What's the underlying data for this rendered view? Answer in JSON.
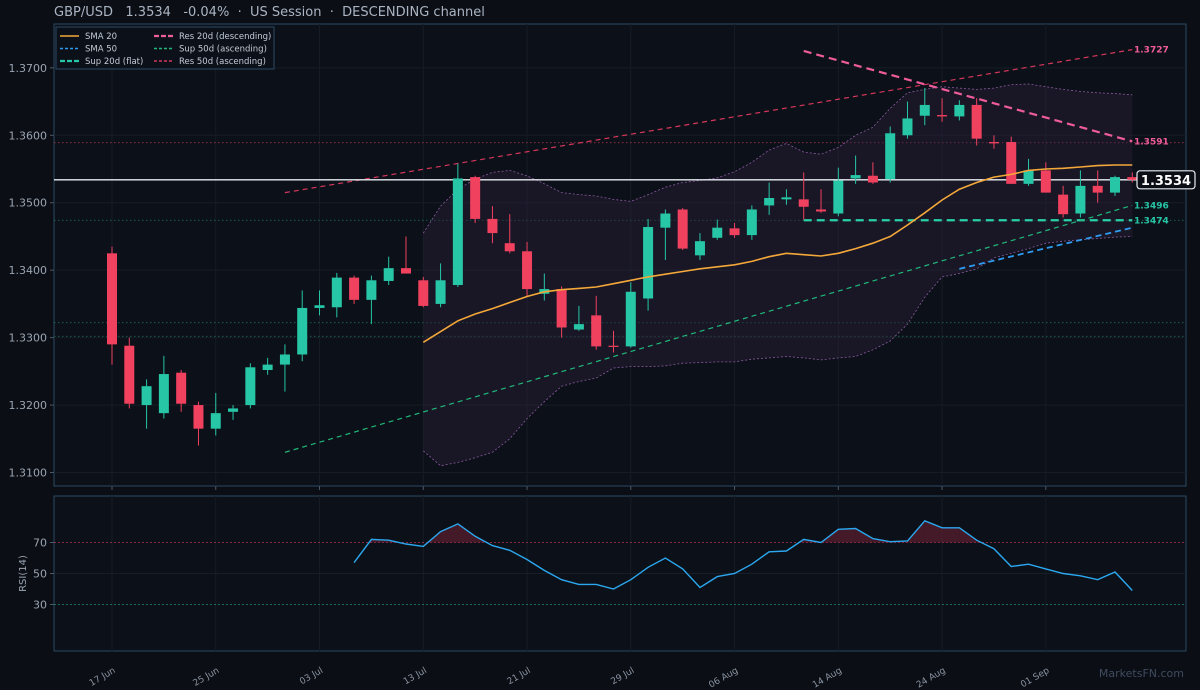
{
  "header": {
    "symbol": "GBP/USD",
    "price": "1.3534",
    "change": "-0.04%",
    "session": "US Session",
    "channel": "DESCENDING channel",
    "separator": "·"
  },
  "watermark": "MarketsFN.com",
  "colors": {
    "bg": "#0b0e14",
    "up": "#26c6a6",
    "down": "#f0415f",
    "sma20": "#f5a83a",
    "sma50": "#2f9bf0",
    "res20": "#ee5c9a",
    "sup50": "#20b87a",
    "res50": "#d6375c",
    "band": "#8a5aa0",
    "rsi": "#2ba8f0",
    "axis": "#2a4a63"
  },
  "chart_data": [
    {
      "type": "candlestick",
      "title": "",
      "ylim": [
        1.308,
        1.3765
      ],
      "yticks": [
        "1.3100",
        "1.3200",
        "1.3300",
        "1.3400",
        "1.3500",
        "1.3600",
        "1.3700"
      ],
      "xticks": [
        {
          "label": "17 Jun",
          "i": 0
        },
        {
          "label": "25 Jun",
          "i": 6
        },
        {
          "label": "03 Jul",
          "i": 12
        },
        {
          "label": "13 Jul",
          "i": 18
        },
        {
          "label": "21 Jul",
          "i": 24
        },
        {
          "label": "29 Jul",
          "i": 30
        },
        {
          "label": "06 Aug",
          "i": 36
        },
        {
          "label": "14 Aug",
          "i": 42
        },
        {
          "label": "24 Aug",
          "i": 48
        },
        {
          "label": "01 Sep",
          "i": 54
        }
      ],
      "candles": [
        [
          1.3425,
          1.3435,
          1.326,
          1.329
        ],
        [
          1.3288,
          1.33,
          1.3195,
          1.3202
        ],
        [
          1.32,
          1.3238,
          1.3165,
          1.3228
        ],
        [
          1.3188,
          1.3273,
          1.318,
          1.3246
        ],
        [
          1.3248,
          1.3252,
          1.319,
          1.3202
        ],
        [
          1.32,
          1.3205,
          1.314,
          1.3165
        ],
        [
          1.3165,
          1.3218,
          1.3155,
          1.3188
        ],
        [
          1.319,
          1.32,
          1.3178,
          1.3195
        ],
        [
          1.32,
          1.3262,
          1.3195,
          1.3256
        ],
        [
          1.3252,
          1.327,
          1.3245,
          1.326
        ],
        [
          1.326,
          1.329,
          1.322,
          1.3275
        ],
        [
          1.3275,
          1.337,
          1.3265,
          1.3344
        ],
        [
          1.3344,
          1.337,
          1.3333,
          1.3348
        ],
        [
          1.3345,
          1.3396,
          1.333,
          1.3389
        ],
        [
          1.3389,
          1.3392,
          1.335,
          1.3356
        ],
        [
          1.3356,
          1.3392,
          1.332,
          1.3385
        ],
        [
          1.3384,
          1.342,
          1.3378,
          1.3403
        ],
        [
          1.3403,
          1.345,
          1.3395,
          1.3395
        ],
        [
          1.3385,
          1.339,
          1.3345,
          1.3347
        ],
        [
          1.335,
          1.341,
          1.3345,
          1.3385
        ],
        [
          1.3378,
          1.3558,
          1.3375,
          1.3536
        ],
        [
          1.3538,
          1.354,
          1.347,
          1.3476
        ],
        [
          1.3476,
          1.3495,
          1.344,
          1.3455
        ],
        [
          1.344,
          1.3483,
          1.3425,
          1.3428
        ],
        [
          1.3428,
          1.3442,
          1.336,
          1.3372
        ],
        [
          1.3365,
          1.3395,
          1.3355,
          1.3372
        ],
        [
          1.3372,
          1.3376,
          1.33,
          1.3315
        ],
        [
          1.3312,
          1.3347,
          1.331,
          1.332
        ],
        [
          1.3333,
          1.3362,
          1.3282,
          1.3287
        ],
        [
          1.3288,
          1.331,
          1.3278,
          1.3287
        ],
        [
          1.3287,
          1.3382,
          1.3285,
          1.3368
        ],
        [
          1.3358,
          1.3476,
          1.334,
          1.3464
        ],
        [
          1.3463,
          1.349,
          1.3415,
          1.3484
        ],
        [
          1.349,
          1.3492,
          1.343,
          1.3432
        ],
        [
          1.3422,
          1.3455,
          1.3415,
          1.3443
        ],
        [
          1.3448,
          1.3475,
          1.3445,
          1.3463
        ],
        [
          1.3462,
          1.347,
          1.3448,
          1.3452
        ],
        [
          1.3452,
          1.3496,
          1.3445,
          1.349
        ],
        [
          1.3496,
          1.353,
          1.3482,
          1.3507
        ],
        [
          1.3505,
          1.352,
          1.3497,
          1.3508
        ],
        [
          1.3505,
          1.3545,
          1.3475,
          1.3494
        ],
        [
          1.349,
          1.352,
          1.3485,
          1.3487
        ],
        [
          1.3484,
          1.3552,
          1.348,
          1.3533
        ],
        [
          1.3536,
          1.357,
          1.3528,
          1.3541
        ],
        [
          1.354,
          1.356,
          1.3528,
          1.353
        ],
        [
          1.3535,
          1.3613,
          1.353,
          1.3603
        ],
        [
          1.36,
          1.365,
          1.3595,
          1.3625
        ],
        [
          1.3629,
          1.367,
          1.3615,
          1.3645
        ],
        [
          1.363,
          1.3655,
          1.362,
          1.3628
        ],
        [
          1.3628,
          1.3652,
          1.3622,
          1.3645
        ],
        [
          1.3645,
          1.3655,
          1.3585,
          1.3595
        ],
        [
          1.359,
          1.36,
          1.358,
          1.3588
        ],
        [
          1.359,
          1.3598,
          1.3528,
          1.3528
        ],
        [
          1.3528,
          1.3565,
          1.3525,
          1.3548
        ],
        [
          1.3548,
          1.356,
          1.3515,
          1.3515
        ],
        [
          1.3512,
          1.3525,
          1.3478,
          1.3483
        ],
        [
          1.3484,
          1.3548,
          1.3478,
          1.3525
        ],
        [
          1.3525,
          1.3548,
          1.35,
          1.3515
        ],
        [
          1.3515,
          1.354,
          1.351,
          1.3538
        ],
        [
          1.3538,
          1.3545,
          1.353,
          1.3534
        ]
      ],
      "sma20": [
        [
          18,
          1.3293
        ],
        [
          19,
          1.3309
        ],
        [
          20,
          1.3325
        ],
        [
          21,
          1.3335
        ],
        [
          22,
          1.3343
        ],
        [
          23,
          1.3352
        ],
        [
          24,
          1.3361
        ],
        [
          25,
          1.3368
        ],
        [
          26,
          1.3371
        ],
        [
          27,
          1.3373
        ],
        [
          28,
          1.3375
        ],
        [
          29,
          1.338
        ],
        [
          30,
          1.3385
        ],
        [
          31,
          1.339
        ],
        [
          32,
          1.3394
        ],
        [
          33,
          1.3398
        ],
        [
          34,
          1.3402
        ],
        [
          35,
          1.3405
        ],
        [
          36,
          1.3408
        ],
        [
          37,
          1.3413
        ],
        [
          38,
          1.342
        ],
        [
          39,
          1.3425
        ],
        [
          40,
          1.3423
        ],
        [
          41,
          1.3421
        ],
        [
          42,
          1.3425
        ],
        [
          43,
          1.3432
        ],
        [
          44,
          1.344
        ],
        [
          45,
          1.345
        ],
        [
          46,
          1.3467
        ],
        [
          47,
          1.3485
        ],
        [
          48,
          1.3504
        ],
        [
          49,
          1.352
        ],
        [
          50,
          1.353
        ],
        [
          51,
          1.3538
        ],
        [
          52,
          1.3542
        ],
        [
          53,
          1.3548
        ],
        [
          54,
          1.355
        ],
        [
          55,
          1.3551
        ],
        [
          56,
          1.3553
        ],
        [
          57,
          1.3555
        ],
        [
          58,
          1.3556
        ],
        [
          59,
          1.3556
        ]
      ],
      "band_upper": [
        [
          18,
          1.3455
        ],
        [
          19,
          1.3495
        ],
        [
          20,
          1.352
        ],
        [
          21,
          1.3535
        ],
        [
          22,
          1.3545
        ],
        [
          23,
          1.3548
        ],
        [
          24,
          1.354
        ],
        [
          25,
          1.3528
        ],
        [
          26,
          1.3515
        ],
        [
          27,
          1.3512
        ],
        [
          28,
          1.351
        ],
        [
          29,
          1.3505
        ],
        [
          30,
          1.3502
        ],
        [
          31,
          1.3512
        ],
        [
          32,
          1.3523
        ],
        [
          33,
          1.353
        ],
        [
          34,
          1.3533
        ],
        [
          35,
          1.3537
        ],
        [
          36,
          1.3546
        ],
        [
          37,
          1.356
        ],
        [
          38,
          1.3578
        ],
        [
          39,
          1.3588
        ],
        [
          40,
          1.3575
        ],
        [
          41,
          1.3572
        ],
        [
          42,
          1.3582
        ],
        [
          43,
          1.36
        ],
        [
          44,
          1.3612
        ],
        [
          45,
          1.364
        ],
        [
          46,
          1.3663
        ],
        [
          47,
          1.3668
        ],
        [
          48,
          1.3672
        ],
        [
          49,
          1.367
        ],
        [
          50,
          1.3668
        ],
        [
          51,
          1.367
        ],
        [
          52,
          1.3675
        ],
        [
          53,
          1.3676
        ],
        [
          54,
          1.3672
        ],
        [
          55,
          1.3668
        ],
        [
          56,
          1.3665
        ],
        [
          57,
          1.3663
        ],
        [
          58,
          1.3662
        ],
        [
          59,
          1.366
        ]
      ],
      "band_lower": [
        [
          18,
          1.3132
        ],
        [
          19,
          1.311
        ],
        [
          20,
          1.3115
        ],
        [
          21,
          1.3122
        ],
        [
          22,
          1.313
        ],
        [
          23,
          1.315
        ],
        [
          24,
          1.318
        ],
        [
          25,
          1.3205
        ],
        [
          26,
          1.3228
        ],
        [
          27,
          1.3235
        ],
        [
          28,
          1.324
        ],
        [
          29,
          1.3255
        ],
        [
          30,
          1.3257
        ],
        [
          31,
          1.3257
        ],
        [
          32,
          1.3258
        ],
        [
          33,
          1.3262
        ],
        [
          34,
          1.3263
        ],
        [
          35,
          1.3264
        ],
        [
          36,
          1.3264
        ],
        [
          37,
          1.3268
        ],
        [
          38,
          1.327
        ],
        [
          39,
          1.3272
        ],
        [
          40,
          1.327
        ],
        [
          41,
          1.3267
        ],
        [
          42,
          1.327
        ],
        [
          43,
          1.3272
        ],
        [
          44,
          1.3282
        ],
        [
          45,
          1.3295
        ],
        [
          46,
          1.332
        ],
        [
          47,
          1.336
        ],
        [
          48,
          1.339
        ],
        [
          49,
          1.3395
        ],
        [
          50,
          1.3402
        ],
        [
          51,
          1.3418
        ],
        [
          52,
          1.3425
        ],
        [
          53,
          1.3432
        ],
        [
          54,
          1.344
        ],
        [
          55,
          1.3443
        ],
        [
          56,
          1.3445
        ],
        [
          57,
          1.3447
        ],
        [
          58,
          1.3449
        ],
        [
          59,
          1.345
        ]
      ],
      "lines": [
        {
          "name": "SMA 50",
          "from": [
            49,
            1.3402
          ],
          "to": [
            59,
            1.3463
          ],
          "style": "dash"
        },
        {
          "name": "Res 20d (descending)",
          "from": [
            40,
            1.3725
          ],
          "to": [
            59,
            1.3591
          ],
          "style": "dashbold"
        },
        {
          "name": "Sup 20d (flat)",
          "from": [
            40,
            1.3474
          ],
          "to": [
            59,
            1.3474
          ],
          "style": "dashbold"
        },
        {
          "name": "Sup 50d (ascending)",
          "from": [
            10,
            1.313
          ],
          "to": [
            59,
            1.3496
          ],
          "style": "dashthin"
        },
        {
          "name": "Res 50d (ascending)",
          "from": [
            10,
            1.3515
          ],
          "to": [
            59,
            1.3727
          ],
          "style": "dashthin"
        }
      ],
      "hlines": [
        1.3589,
        1.3474,
        1.3322,
        1.3302
      ],
      "last_price": 1.3534,
      "last_price_label": "1.3534",
      "level_labels": [
        {
          "text": "1.3727",
          "value": 1.3727,
          "color": "#ee5c9a"
        },
        {
          "text": "1.3591",
          "value": 1.3591,
          "color": "#ee5c9a"
        },
        {
          "text": "1.3496",
          "value": 1.3496,
          "color": "#26c6a6"
        },
        {
          "text": "1.3474",
          "value": 1.3474,
          "color": "#26c6a6"
        }
      ],
      "legend": {
        "placement": "top-left",
        "col1": [
          {
            "label": "SMA 20",
            "color": "#f5a83a",
            "style": "solid"
          },
          {
            "label": "SMA 50",
            "color": "#2f9bf0",
            "style": "dash"
          },
          {
            "label": "Sup 20d (flat)",
            "color": "#26c6a6",
            "style": "dashbold"
          }
        ],
        "col2": [
          {
            "label": "Res 20d (descending)",
            "color": "#ee5c9a",
            "style": "dashbold"
          },
          {
            "label": "Sup 50d (ascending)",
            "color": "#20b87a",
            "style": "dash"
          },
          {
            "label": "Res 50d (ascending)",
            "color": "#d6375c",
            "style": "dash"
          }
        ]
      }
    },
    {
      "type": "line",
      "title": "",
      "ylabel": "RSI(14)",
      "ylim": [
        0,
        100
      ],
      "yticks": [
        30,
        50,
        70
      ],
      "overbought": 70,
      "oversold": 30,
      "rsi": [
        [
          14,
          57
        ],
        [
          15,
          72
        ],
        [
          16,
          71.5
        ],
        [
          17,
          69
        ],
        [
          18,
          67.5
        ],
        [
          19,
          77
        ],
        [
          20,
          82
        ],
        [
          21,
          74
        ],
        [
          22,
          68
        ],
        [
          23,
          65
        ],
        [
          24,
          59
        ],
        [
          25,
          52
        ],
        [
          26,
          46
        ],
        [
          27,
          43
        ],
        [
          28,
          43
        ],
        [
          29,
          40
        ],
        [
          30,
          46
        ],
        [
          31,
          54
        ],
        [
          32,
          60
        ],
        [
          33,
          53
        ],
        [
          34,
          41
        ],
        [
          35,
          48
        ],
        [
          36,
          50
        ],
        [
          37,
          56
        ],
        [
          38,
          64
        ],
        [
          39,
          64.5
        ],
        [
          40,
          72
        ],
        [
          41,
          70
        ],
        [
          42,
          78.5
        ],
        [
          43,
          79
        ],
        [
          44,
          72.5
        ],
        [
          45,
          70.5
        ],
        [
          46,
          71
        ],
        [
          47,
          84
        ],
        [
          48,
          79.5
        ],
        [
          49,
          79.5
        ],
        [
          50,
          71.5
        ],
        [
          51,
          66
        ],
        [
          52,
          54.5
        ],
        [
          53,
          56
        ],
        [
          54,
          53
        ],
        [
          55,
          50
        ],
        [
          56,
          48.5
        ],
        [
          57,
          46
        ],
        [
          58,
          51
        ],
        [
          59,
          39
        ]
      ]
    }
  ]
}
